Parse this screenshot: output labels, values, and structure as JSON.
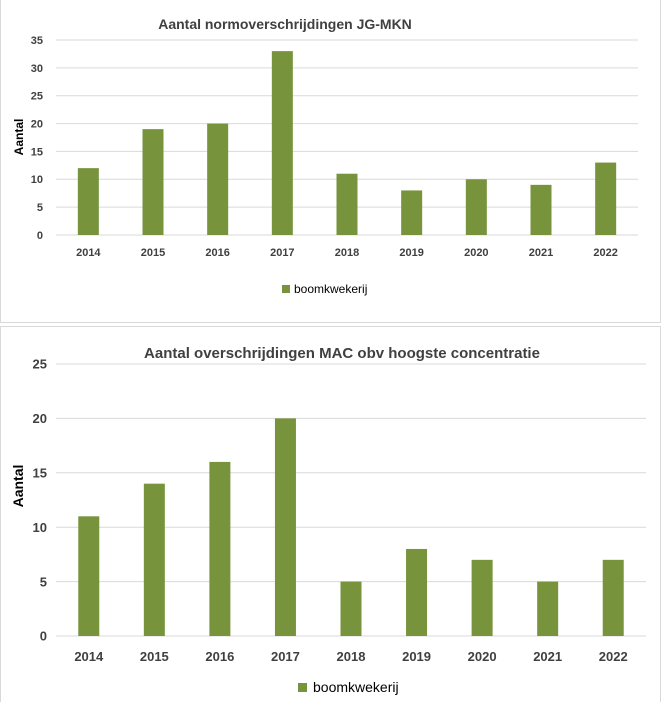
{
  "colors": {
    "bar": "#77933c",
    "grid": "#d9d9d9",
    "text": "#404040"
  },
  "chart_data": [
    {
      "type": "bar",
      "title": "Aantal normoverschrijdingen JG-MKN",
      "ylabel": "Aantal",
      "xlabel": "",
      "categories": [
        "2014",
        "2015",
        "2016",
        "2017",
        "2018",
        "2019",
        "2020",
        "2021",
        "2022"
      ],
      "series": [
        {
          "name": "boomkwekerij",
          "values": [
            12,
            19,
            20,
            33,
            11,
            8,
            10,
            9,
            13
          ]
        }
      ],
      "ylim": [
        0,
        35
      ],
      "yticks": [
        "0",
        "5",
        "10",
        "15",
        "20",
        "25",
        "30",
        "35"
      ],
      "grid": true,
      "legend": "bottom"
    },
    {
      "type": "bar",
      "title": "Aantal overschrijdingen MAC obv hoogste concentratie",
      "ylabel": "Aantal",
      "xlabel": "",
      "categories": [
        "2014",
        "2015",
        "2016",
        "2017",
        "2018",
        "2019",
        "2020",
        "2021",
        "2022"
      ],
      "series": [
        {
          "name": "boomkwekerij",
          "values": [
            11,
            14,
            16,
            20,
            5,
            8,
            7,
            5,
            7
          ]
        }
      ],
      "ylim": [
        0,
        25
      ],
      "yticks": [
        "0",
        "5",
        "10",
        "15",
        "20",
        "25"
      ],
      "grid": true,
      "legend": "bottom"
    }
  ]
}
